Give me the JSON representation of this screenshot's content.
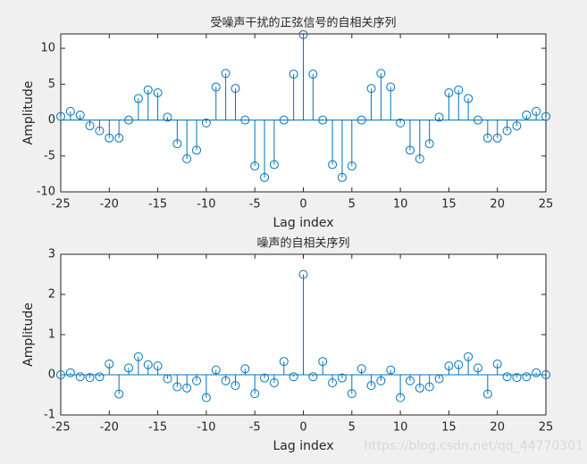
{
  "chart_data": [
    {
      "type": "stem",
      "title": "受噪声干扰的正弦信号的自相关序列",
      "xlabel": "Lag index",
      "ylabel": "Amplitude",
      "x": [
        -25,
        -24,
        -23,
        -22,
        -21,
        -20,
        -19,
        -18,
        -17,
        -16,
        -15,
        -14,
        -13,
        -12,
        -11,
        -10,
        -9,
        -8,
        -7,
        -6,
        -5,
        -4,
        -3,
        -2,
        -1,
        0,
        1,
        2,
        3,
        4,
        5,
        6,
        7,
        8,
        9,
        10,
        11,
        12,
        13,
        14,
        15,
        16,
        17,
        18,
        19,
        20,
        21,
        22,
        23,
        24,
        25
      ],
      "values": [
        0.5,
        1.2,
        0.7,
        -0.8,
        -1.5,
        -2.5,
        -2.5,
        0,
        3,
        4.2,
        3.8,
        0.4,
        -3.3,
        -5.4,
        -4.2,
        -0.4,
        4.6,
        6.5,
        4.4,
        0,
        -6.4,
        -8,
        -6.2,
        0,
        6.4,
        11.9,
        6.4,
        0,
        -6.2,
        -8,
        -6.4,
        0,
        4.4,
        6.5,
        4.6,
        -0.4,
        -4.2,
        -5.4,
        -3.3,
        0.4,
        3.8,
        4.2,
        3,
        0,
        -2.5,
        -2.5,
        -1.5,
        -0.8,
        0.7,
        1.2,
        0.5
      ],
      "color": "#0072bd",
      "xlim": [
        -25,
        25
      ],
      "xticks": [
        -25,
        -20,
        -15,
        -10,
        -5,
        0,
        5,
        10,
        15,
        20,
        25
      ],
      "ylim": [
        -10,
        12
      ],
      "yticks": [
        -10,
        -5,
        0,
        5,
        10
      ]
    },
    {
      "type": "stem",
      "title": "噪声的自相关序列",
      "xlabel": "Lag index",
      "ylabel": "Amplitude",
      "x": [
        -25,
        -24,
        -23,
        -22,
        -21,
        -20,
        -19,
        -18,
        -17,
        -16,
        -15,
        -14,
        -13,
        -12,
        -11,
        -10,
        -9,
        -8,
        -7,
        -6,
        -5,
        -4,
        -3,
        -2,
        -1,
        0,
        1,
        2,
        3,
        4,
        5,
        6,
        7,
        8,
        9,
        10,
        11,
        12,
        13,
        14,
        15,
        16,
        17,
        18,
        19,
        20,
        21,
        22,
        23,
        24,
        25
      ],
      "values": [
        0,
        0.05,
        -0.05,
        -0.07,
        -0.05,
        0.27,
        -0.48,
        0.17,
        0.45,
        0.25,
        0.22,
        -0.1,
        -0.3,
        -0.33,
        -0.15,
        -0.57,
        0.12,
        -0.15,
        -0.27,
        0.15,
        -0.47,
        -0.08,
        -0.2,
        0.33,
        -0.05,
        2.5,
        -0.05,
        0.33,
        -0.2,
        -0.08,
        -0.47,
        0.15,
        -0.27,
        -0.15,
        0.12,
        -0.57,
        -0.15,
        -0.33,
        -0.3,
        -0.1,
        0.22,
        0.25,
        0.45,
        0.17,
        -0.48,
        0.27,
        -0.05,
        -0.07,
        -0.05,
        0.05,
        0
      ],
      "color": "#0072bd",
      "xlim": [
        -25,
        25
      ],
      "xticks": [
        -25,
        -20,
        -15,
        -10,
        -5,
        0,
        5,
        10,
        15,
        20,
        25
      ],
      "ylim": [
        -1,
        3
      ],
      "yticks": [
        -1,
        0,
        1,
        2,
        3
      ]
    }
  ],
  "watermark": "https://blog.csdn.net/qq_44770301"
}
